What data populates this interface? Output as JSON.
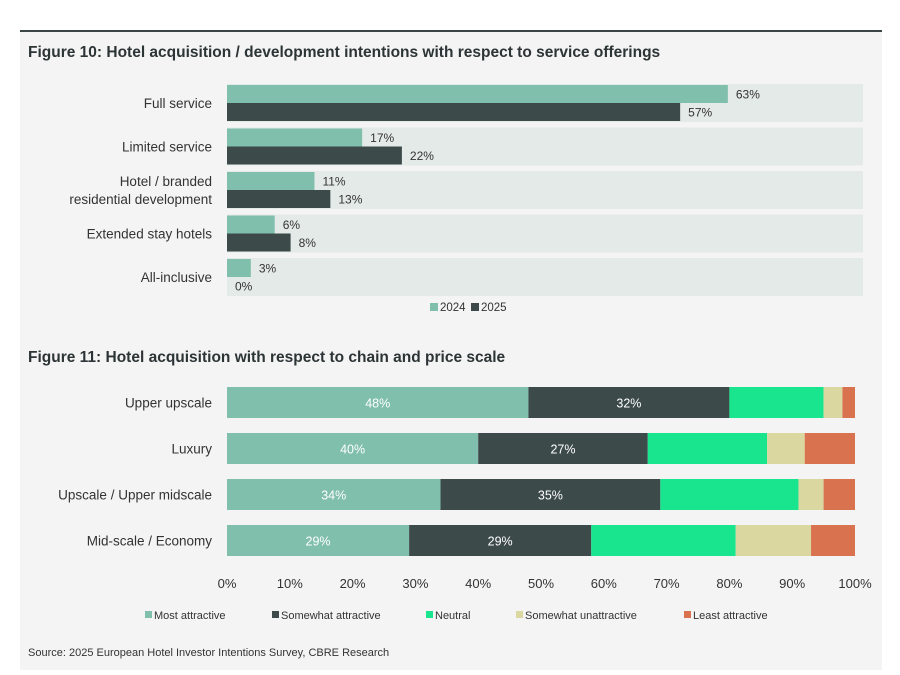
{
  "figure10_title": "Figure 10: Hotel acquisition / development intentions with respect to service offerings",
  "figure11_title": "Figure 11: Hotel acquisition with respect to chain and price scale",
  "source": "Source: 2025 European Hotel Investor Intentions Survey, CBRE Research",
  "colors": {
    "c2024": "#80bfac",
    "c2025": "#3d4a4a",
    "track": "#e4eae8",
    "most": "#80bfac",
    "somewhat": "#3d4a4a",
    "neutral": "#19e58f",
    "unattractive": "#dbd7a0",
    "least": "#d9724f"
  },
  "chart_data": [
    {
      "type": "bar",
      "orientation": "horizontal",
      "title": "Figure 10: Hotel acquisition / development intentions with respect to service offerings",
      "categories": [
        [
          "Full service"
        ],
        [
          "Limited service"
        ],
        [
          "Hotel / branded",
          "residential development"
        ],
        [
          "Extended stay hotels"
        ],
        [
          "All-inclusive"
        ]
      ],
      "series": [
        {
          "name": "2024",
          "values": [
            63,
            17,
            11,
            6,
            3
          ],
          "labels": [
            "63%",
            "17%",
            "11%",
            "6%",
            "3%"
          ]
        },
        {
          "name": "2025",
          "values": [
            57,
            22,
            13,
            8,
            0
          ],
          "labels": [
            "57%",
            "22%",
            "13%",
            "8%",
            "0%"
          ]
        }
      ],
      "xlim": [
        0,
        100
      ],
      "legend": "bottom-center",
      "legend_labels": [
        "2024",
        "2025"
      ]
    },
    {
      "type": "bar",
      "orientation": "horizontal",
      "stacked": true,
      "title": "Figure 11: Hotel acquisition with respect to chain and price scale",
      "categories": [
        "Upper upscale",
        "Luxury",
        "Upscale / Upper midscale",
        "Mid-scale / Economy"
      ],
      "series": [
        {
          "name": "Most attractive",
          "values": [
            48,
            40,
            34,
            29
          ],
          "labels": [
            "48%",
            "40%",
            "34%",
            "29%"
          ]
        },
        {
          "name": "Somewhat attractive",
          "values": [
            32,
            27,
            35,
            29
          ],
          "labels": [
            "32%",
            "27%",
            "35%",
            "29%"
          ]
        },
        {
          "name": "Neutral",
          "values": [
            15,
            19,
            22,
            23
          ]
        },
        {
          "name": "Somewhat unattractive",
          "values": [
            3,
            6,
            4,
            12
          ]
        },
        {
          "name": "Least attractive",
          "values": [
            2,
            8,
            5,
            7
          ]
        }
      ],
      "xlim": [
        0,
        100
      ],
      "xticks": [
        "0%",
        "10%",
        "20%",
        "30%",
        "40%",
        "50%",
        "60%",
        "70%",
        "80%",
        "90%",
        "100%"
      ],
      "legend": "bottom",
      "legend_labels": [
        "Most attractive",
        "Somewhat attractive",
        "Neutral",
        "Somewhat unattractive",
        "Least attractive"
      ]
    }
  ]
}
